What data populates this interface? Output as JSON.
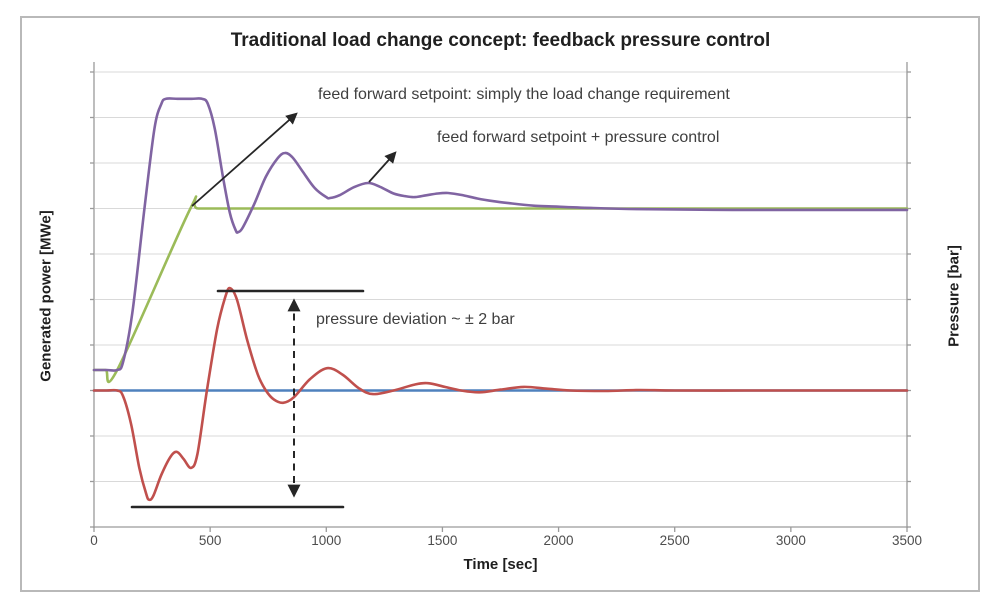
{
  "chart_data": {
    "type": "line",
    "title": "Traditional load change concept: feedback pressure control",
    "xlabel": "Time [sec]",
    "ylabel_left": "Generated power [MWe]",
    "ylabel_right": "Pressure [bar]",
    "xlim": [
      0,
      3500
    ],
    "x_ticks": [
      0,
      500,
      1000,
      1500,
      2000,
      2500,
      3000,
      3500
    ],
    "ylim": [
      0,
      10
    ],
    "y_axis_numbers_shown": false,
    "y_unit_note": "both vertical axes are unlabeled; values given in gridline units 0-10 (10 horizontal gridlines)",
    "grid": "horizontal gridlines only",
    "legend": "none - curves identified by arrow annotations",
    "series": [
      {
        "name": "feed forward setpoint (load change requirement)",
        "color": "#9BBB59",
        "points": [
          [
            0,
            3.45
          ],
          [
            50,
            3.45
          ],
          [
            100,
            3.45
          ],
          [
            415,
            7.0
          ],
          [
            450,
            7.0
          ],
          [
            700,
            7.0
          ],
          [
            1200,
            7.0
          ],
          [
            2000,
            7.0
          ],
          [
            2800,
            7.0
          ],
          [
            3500,
            7.0
          ]
        ]
      },
      {
        "name": "feed forward setpoint + pressure control (generated power)",
        "color": "#8064A2",
        "points": [
          [
            0,
            3.45
          ],
          [
            55,
            3.45
          ],
          [
            100,
            3.45
          ],
          [
            125,
            3.62
          ],
          [
            165,
            4.7
          ],
          [
            215,
            6.9
          ],
          [
            260,
            8.75
          ],
          [
            290,
            9.3
          ],
          [
            310,
            9.41
          ],
          [
            360,
            9.41
          ],
          [
            420,
            9.41
          ],
          [
            465,
            9.41
          ],
          [
            490,
            9.3
          ],
          [
            520,
            8.75
          ],
          [
            555,
            7.7
          ],
          [
            585,
            6.9
          ],
          [
            610,
            6.52
          ],
          [
            620,
            6.48
          ],
          [
            640,
            6.58
          ],
          [
            690,
            7.1
          ],
          [
            740,
            7.7
          ],
          [
            790,
            8.1
          ],
          [
            822,
            8.22
          ],
          [
            855,
            8.12
          ],
          [
            900,
            7.8
          ],
          [
            950,
            7.45
          ],
          [
            1000,
            7.25
          ],
          [
            1016,
            7.23
          ],
          [
            1060,
            7.3
          ],
          [
            1120,
            7.47
          ],
          [
            1180,
            7.56
          ],
          [
            1230,
            7.48
          ],
          [
            1290,
            7.33
          ],
          [
            1340,
            7.27
          ],
          [
            1382,
            7.25
          ],
          [
            1430,
            7.29
          ],
          [
            1480,
            7.33
          ],
          [
            1524,
            7.34
          ],
          [
            1580,
            7.3
          ],
          [
            1650,
            7.22
          ],
          [
            1720,
            7.16
          ],
          [
            1800,
            7.11
          ],
          [
            1900,
            7.06
          ],
          [
            2000,
            7.04
          ],
          [
            2150,
            7.01
          ],
          [
            2300,
            6.99
          ],
          [
            2500,
            6.98
          ],
          [
            2750,
            6.97
          ],
          [
            3000,
            6.97
          ],
          [
            3250,
            6.97
          ],
          [
            3500,
            6.97
          ]
        ]
      },
      {
        "name": "pressure setpoint",
        "color": "#4F81BD",
        "points": [
          [
            0,
            3.0
          ],
          [
            1000,
            3.0
          ],
          [
            2000,
            3.0
          ],
          [
            3500,
            3.0
          ]
        ]
      },
      {
        "name": "pressure (feedback controlled), deviation ~ ±2 bar",
        "color": "#C0504D",
        "points": [
          [
            0,
            3.0
          ],
          [
            55,
            3.0
          ],
          [
            100,
            3.0
          ],
          [
            125,
            2.88
          ],
          [
            160,
            2.25
          ],
          [
            195,
            1.3
          ],
          [
            225,
            0.72
          ],
          [
            237,
            0.6
          ],
          [
            255,
            0.68
          ],
          [
            290,
            1.15
          ],
          [
            330,
            1.55
          ],
          [
            357,
            1.65
          ],
          [
            385,
            1.5
          ],
          [
            418,
            1.3
          ],
          [
            445,
            1.6
          ],
          [
            486,
            3.0
          ],
          [
            530,
            4.35
          ],
          [
            565,
            5.05
          ],
          [
            585,
            5.25
          ],
          [
            615,
            5.0
          ],
          [
            660,
            4.1
          ],
          [
            705,
            3.35
          ],
          [
            740,
            3.0
          ],
          [
            775,
            2.8
          ],
          [
            814,
            2.73
          ],
          [
            860,
            2.85
          ],
          [
            930,
            3.25
          ],
          [
            1003,
            3.49
          ],
          [
            1070,
            3.35
          ],
          [
            1140,
            3.05
          ],
          [
            1201,
            2.92
          ],
          [
            1290,
            3.0
          ],
          [
            1380,
            3.13
          ],
          [
            1438,
            3.16
          ],
          [
            1510,
            3.08
          ],
          [
            1580,
            3.0
          ],
          [
            1660,
            2.96
          ],
          [
            1750,
            3.02
          ],
          [
            1850,
            3.08
          ],
          [
            1950,
            3.04
          ],
          [
            2050,
            3.0
          ],
          [
            2200,
            2.99
          ],
          [
            2350,
            3.01
          ],
          [
            2500,
            3.0
          ],
          [
            2800,
            3.0
          ],
          [
            3100,
            3.0
          ],
          [
            3500,
            3.0
          ]
        ]
      }
    ],
    "annotations": [
      {
        "text": "feed forward setpoint: simply the load change requirement",
        "points_to": "ramp of the green feed-forward setpoint curve"
      },
      {
        "text": "feed forward setpoint + pressure control",
        "points_to": "purple damped-oscillation power curve"
      },
      {
        "text": "pressure deviation ~ ± 2 bar",
        "points_to": "peak-to-trough range of the red pressure curve"
      }
    ],
    "colors": {
      "gridline": "#D9D9D9",
      "axis": "#9a9a9a",
      "annotation_ink": "#262626"
    }
  }
}
